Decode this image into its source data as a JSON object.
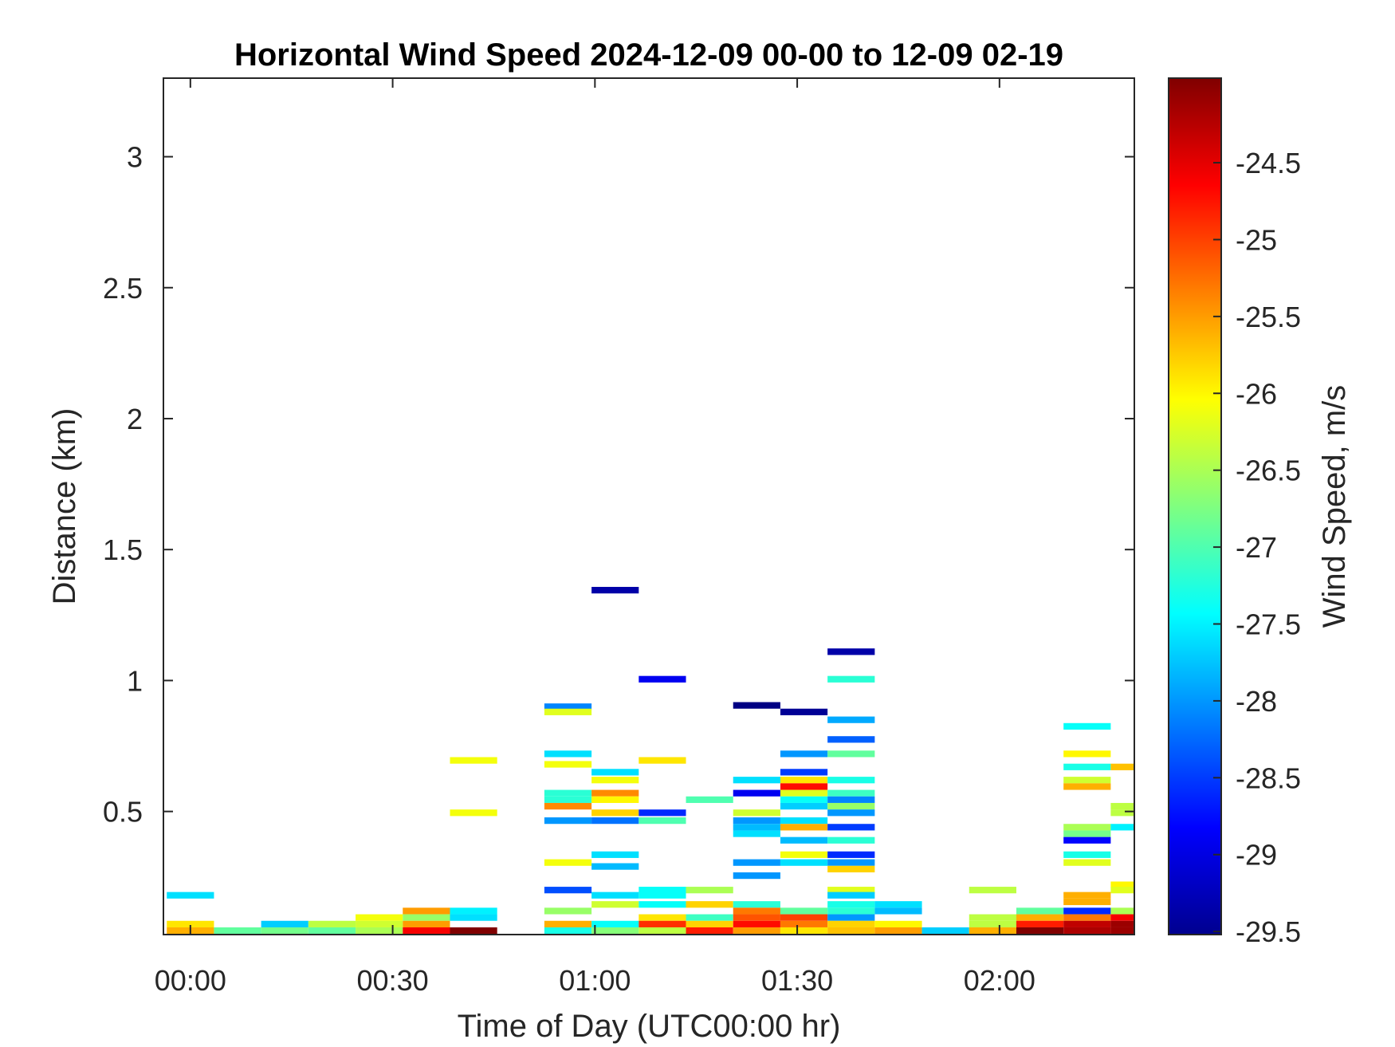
{
  "chart_data": {
    "type": "heatmap",
    "title": "Horizontal Wind Speed 2024-12-09 00-00 to 12-09 02-19",
    "xlabel": "Time of Day (UTC00:00 hr)",
    "ylabel": "Distance (km)",
    "colorbar_label": "Wind Speed, m/s",
    "x_unit": "minutes after 00:00",
    "xlim": [
      -4,
      140
    ],
    "ylim": [
      0.03,
      3.3
    ],
    "x_ticks": [
      0,
      30,
      60,
      90,
      120
    ],
    "x_tick_labels": [
      "00:00",
      "00:30",
      "01:00",
      "01:30",
      "02:00"
    ],
    "y_ticks": [
      0.5,
      1,
      1.5,
      2,
      2.5,
      3
    ],
    "y_tick_labels": [
      "0.5",
      "1",
      "1.5",
      "2",
      "2.5",
      "3"
    ],
    "colorbar_range": [
      -29.52,
      -23.95
    ],
    "colorbar_ticks": [
      -24.5,
      -25,
      -25.5,
      -26,
      -26.5,
      -27,
      -27.5,
      -28,
      -28.5,
      -29,
      -29.5
    ],
    "colorbar_tick_labels": [
      "-24.5",
      "-25",
      "-25.5",
      "-26",
      "-26.5",
      "-27",
      "-27.5",
      "-28",
      "-28.5",
      "-29",
      "-29.5"
    ],
    "colormap": "jet",
    "cell_width_minutes": 7,
    "cell_height_km": 0.025,
    "cells": [
      [
        0,
        0.18,
        -27.6
      ],
      [
        0,
        0.07,
        -25.9
      ],
      [
        0,
        0.045,
        -25.6
      ],
      [
        7,
        0.045,
        -26.9
      ],
      [
        14,
        0.07,
        -27.7
      ],
      [
        14,
        0.045,
        -26.8
      ],
      [
        21,
        0.07,
        -26.4
      ],
      [
        21,
        0.045,
        -26.9
      ],
      [
        28,
        0.095,
        -26.1
      ],
      [
        28,
        0.07,
        -26.3
      ],
      [
        28,
        0.045,
        -26.5
      ],
      [
        35,
        0.12,
        -25.5
      ],
      [
        35,
        0.095,
        -26.6
      ],
      [
        35,
        0.07,
        -25.5
      ],
      [
        35,
        0.045,
        -24.6
      ],
      [
        42,
        0.695,
        -26.1
      ],
      [
        42,
        0.495,
        -26.1
      ],
      [
        42,
        0.12,
        -27.5
      ],
      [
        42,
        0.095,
        -27.6
      ],
      [
        42,
        0.045,
        -23.8
      ],
      [
        56,
        0.9,
        -28.1
      ],
      [
        56,
        0.88,
        -26.2
      ],
      [
        56,
        0.72,
        -27.6
      ],
      [
        56,
        0.68,
        -26.1
      ],
      [
        56,
        0.57,
        -27.2
      ],
      [
        56,
        0.545,
        -27.2
      ],
      [
        56,
        0.52,
        -25.4
      ],
      [
        56,
        0.465,
        -28.0
      ],
      [
        56,
        0.305,
        -26.1
      ],
      [
        56,
        0.2,
        -28.4
      ],
      [
        56,
        0.12,
        -26.6
      ],
      [
        56,
        0.07,
        -25.6
      ],
      [
        56,
        0.045,
        -27.3
      ],
      [
        63,
        1.345,
        -29.3
      ],
      [
        63,
        0.65,
        -27.6
      ],
      [
        63,
        0.62,
        -26.1
      ],
      [
        63,
        0.57,
        -25.4
      ],
      [
        63,
        0.545,
        -26.0
      ],
      [
        63,
        0.495,
        -25.8
      ],
      [
        63,
        0.465,
        -28.2
      ],
      [
        63,
        0.335,
        -27.6
      ],
      [
        63,
        0.29,
        -27.8
      ],
      [
        63,
        0.18,
        -27.6
      ],
      [
        63,
        0.145,
        -26.3
      ],
      [
        63,
        0.07,
        -27.4
      ],
      [
        63,
        0.045,
        -26.7
      ],
      [
        70,
        1.005,
        -28.9
      ],
      [
        70,
        0.695,
        -25.9
      ],
      [
        70,
        0.495,
        -28.6
      ],
      [
        70,
        0.465,
        -27.0
      ],
      [
        70,
        0.2,
        -27.4
      ],
      [
        70,
        0.18,
        -27.4
      ],
      [
        70,
        0.145,
        -27.4
      ],
      [
        70,
        0.095,
        -25.9
      ],
      [
        70,
        0.07,
        -24.9
      ],
      [
        70,
        0.045,
        -26.4
      ],
      [
        77,
        0.545,
        -27.0
      ],
      [
        77,
        0.2,
        -26.5
      ],
      [
        77,
        0.145,
        -25.8
      ],
      [
        77,
        0.095,
        -27.1
      ],
      [
        77,
        0.07,
        -25.8
      ],
      [
        77,
        0.045,
        -24.8
      ],
      [
        84,
        0.905,
        -29.5
      ],
      [
        84,
        0.62,
        -27.6
      ],
      [
        84,
        0.57,
        -28.9
      ],
      [
        84,
        0.495,
        -26.3
      ],
      [
        84,
        0.465,
        -28.0
      ],
      [
        84,
        0.44,
        -27.8
      ],
      [
        84,
        0.415,
        -27.6
      ],
      [
        84,
        0.305,
        -28.0
      ],
      [
        84,
        0.255,
        -28.0
      ],
      [
        84,
        0.145,
        -27.2
      ],
      [
        84,
        0.12,
        -25.3
      ],
      [
        84,
        0.095,
        -25.1
      ],
      [
        84,
        0.07,
        -24.7
      ],
      [
        84,
        0.045,
        -25.5
      ],
      [
        91,
        0.88,
        -29.4
      ],
      [
        91,
        0.72,
        -28.0
      ],
      [
        91,
        0.65,
        -28.5
      ],
      [
        91,
        0.62,
        -25.9
      ],
      [
        91,
        0.595,
        -24.7
      ],
      [
        91,
        0.57,
        -26.2
      ],
      [
        91,
        0.545,
        -27.4
      ],
      [
        91,
        0.52,
        -27.7
      ],
      [
        91,
        0.465,
        -27.6
      ],
      [
        91,
        0.44,
        -25.6
      ],
      [
        91,
        0.39,
        -27.8
      ],
      [
        91,
        0.335,
        -26.1
      ],
      [
        91,
        0.305,
        -27.6
      ],
      [
        91,
        0.12,
        -26.9
      ],
      [
        91,
        0.095,
        -25.0
      ],
      [
        91,
        0.07,
        -25.3
      ],
      [
        91,
        0.045,
        -25.9
      ],
      [
        98,
        1.11,
        -29.3
      ],
      [
        98,
        1.005,
        -27.2
      ],
      [
        98,
        0.85,
        -27.9
      ],
      [
        98,
        0.775,
        -28.3
      ],
      [
        98,
        0.72,
        -26.9
      ],
      [
        98,
        0.62,
        -27.3
      ],
      [
        98,
        0.57,
        -27.1
      ],
      [
        98,
        0.545,
        -28.1
      ],
      [
        98,
        0.52,
        -26.6
      ],
      [
        98,
        0.495,
        -28.0
      ],
      [
        98,
        0.44,
        -28.5
      ],
      [
        98,
        0.39,
        -27.2
      ],
      [
        98,
        0.335,
        -28.6
      ],
      [
        98,
        0.305,
        -28.0
      ],
      [
        98,
        0.28,
        -25.8
      ],
      [
        98,
        0.2,
        -26.2
      ],
      [
        98,
        0.18,
        -27.7
      ],
      [
        98,
        0.145,
        -27.3
      ],
      [
        98,
        0.12,
        -27.2
      ],
      [
        98,
        0.095,
        -28.0
      ],
      [
        98,
        0.07,
        -25.8
      ],
      [
        98,
        0.045,
        -25.7
      ],
      [
        105,
        0.145,
        -27.6
      ],
      [
        105,
        0.12,
        -27.8
      ],
      [
        105,
        0.07,
        -26.0
      ],
      [
        105,
        0.045,
        -25.5
      ],
      [
        112,
        0.045,
        -27.7
      ],
      [
        119,
        0.2,
        -26.4
      ],
      [
        119,
        0.095,
        -26.4
      ],
      [
        119,
        0.07,
        -26.4
      ],
      [
        119,
        0.045,
        -25.6
      ],
      [
        126,
        0.12,
        -26.9
      ],
      [
        126,
        0.095,
        -25.6
      ],
      [
        126,
        0.07,
        -24.8
      ],
      [
        126,
        0.045,
        -23.9
      ],
      [
        133,
        0.825,
        -27.4
      ],
      [
        133,
        0.72,
        -26.0
      ],
      [
        133,
        0.67,
        -27.3
      ],
      [
        133,
        0.62,
        -26.3
      ],
      [
        133,
        0.595,
        -25.6
      ],
      [
        133,
        0.44,
        -26.5
      ],
      [
        133,
        0.415,
        -26.8
      ],
      [
        133,
        0.39,
        -28.8
      ],
      [
        133,
        0.335,
        -27.3
      ],
      [
        133,
        0.305,
        -26.2
      ],
      [
        133,
        0.18,
        -25.6
      ],
      [
        133,
        0.155,
        -25.6
      ],
      [
        133,
        0.12,
        -28.6
      ],
      [
        133,
        0.095,
        -25.3
      ],
      [
        133,
        0.07,
        -24.3
      ],
      [
        133,
        0.045,
        -24.2
      ],
      [
        140,
        0.67,
        -25.7
      ],
      [
        140,
        0.52,
        -26.4
      ],
      [
        140,
        0.495,
        -26.4
      ],
      [
        140,
        0.44,
        -27.5
      ],
      [
        140,
        0.22,
        -26.0
      ],
      [
        140,
        0.2,
        -26.2
      ],
      [
        140,
        0.12,
        -26.5
      ],
      [
        140,
        0.095,
        -24.6
      ],
      [
        140,
        0.07,
        -24.1
      ],
      [
        140,
        0.045,
        -24.1
      ]
    ],
    "grid": false,
    "legend": "colorbar on right"
  }
}
